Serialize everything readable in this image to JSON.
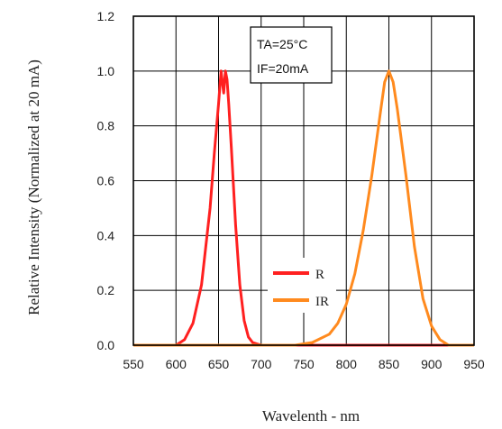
{
  "chart_data": {
    "type": "line",
    "title": "",
    "xlabel": "Wavelenth - nm",
    "ylabel": "Relative Intensity (Normalized at 20 mA)",
    "xlim": [
      550,
      950
    ],
    "ylim": [
      0,
      1.2
    ],
    "x_ticks": [
      "550",
      "600",
      "650",
      "700",
      "750",
      "800",
      "850",
      "900",
      "950"
    ],
    "y_ticks": [
      "0.0",
      "0.2",
      "0.4",
      "0.6",
      "0.8",
      "1.0",
      "1.2"
    ],
    "grid": true,
    "legend_position": "center",
    "annotation": [
      "TA=25°C",
      "IF=20mA"
    ],
    "series": [
      {
        "name": "R",
        "color": "#ff2020",
        "x": [
          550,
          600,
          610,
          620,
          630,
          640,
          645,
          650,
          653,
          656,
          658,
          660,
          662,
          665,
          670,
          675,
          680,
          685,
          690,
          700,
          950
        ],
        "y": [
          0,
          0,
          0.02,
          0.08,
          0.22,
          0.5,
          0.7,
          0.88,
          1.0,
          0.92,
          1.0,
          0.97,
          0.88,
          0.72,
          0.44,
          0.22,
          0.09,
          0.03,
          0.01,
          0,
          0
        ]
      },
      {
        "name": "IR",
        "color": "#ff8a1e",
        "x": [
          550,
          740,
          760,
          780,
          790,
          800,
          810,
          820,
          830,
          840,
          845,
          850,
          855,
          860,
          870,
          880,
          890,
          900,
          910,
          920,
          950
        ],
        "y": [
          0,
          0,
          0.01,
          0.04,
          0.08,
          0.15,
          0.26,
          0.42,
          0.62,
          0.85,
          0.96,
          1.0,
          0.96,
          0.86,
          0.62,
          0.36,
          0.17,
          0.07,
          0.02,
          0,
          0
        ]
      }
    ]
  }
}
